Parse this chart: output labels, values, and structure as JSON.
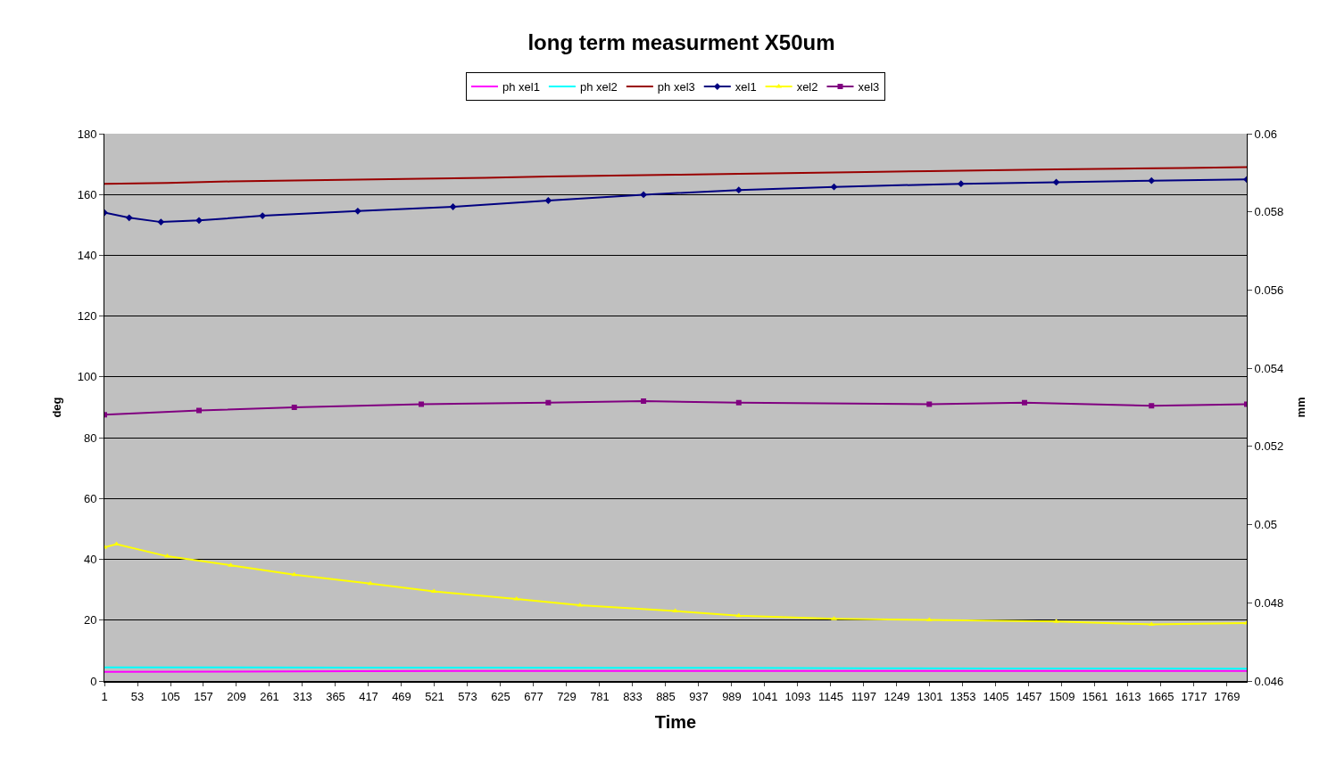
{
  "chart_data": {
    "type": "line",
    "title": "long term measurment X50um",
    "xlabel": "Time",
    "ylabel": "deg",
    "y2label": "mm",
    "xlim": [
      1,
      1800
    ],
    "xticks": [
      1,
      53,
      105,
      157,
      209,
      261,
      313,
      365,
      417,
      469,
      521,
      573,
      625,
      677,
      729,
      781,
      833,
      885,
      937,
      989,
      1041,
      1093,
      1145,
      1197,
      1249,
      1301,
      1353,
      1405,
      1457,
      1509,
      1561,
      1613,
      1665,
      1717,
      1769
    ],
    "ylim": [
      0,
      180
    ],
    "yticks": [
      0,
      20,
      40,
      60,
      80,
      100,
      120,
      140,
      160,
      180
    ],
    "y2lim": [
      0.046,
      0.06
    ],
    "y2ticks": [
      0.046,
      0.048,
      0.05,
      0.052,
      0.054,
      0.056,
      0.058,
      0.06
    ],
    "grid": "y",
    "legend": "top",
    "series": [
      {
        "name": "ph xel1",
        "color": "#ff00ff",
        "marker": "none",
        "x": [
          1,
          200,
          400,
          600,
          800,
          1000,
          1200,
          1400,
          1600,
          1800
        ],
        "values": [
          3,
          3.1,
          3.2,
          3.3,
          3.3,
          3.3,
          3.3,
          3.3,
          3.3,
          3.3
        ]
      },
      {
        "name": "ph xel2",
        "color": "#00ffff",
        "marker": "none",
        "x": [
          1,
          200,
          400,
          600,
          800,
          1000,
          1200,
          1400,
          1600,
          1800
        ],
        "values": [
          4.5,
          4.5,
          4.4,
          4.4,
          4.3,
          4.3,
          4.2,
          4.1,
          4.1,
          4
        ]
      },
      {
        "name": "ph xel3",
        "color": "#990000",
        "marker": "none",
        "x": [
          1,
          100,
          200,
          300,
          400,
          500,
          600,
          700,
          800,
          900,
          1000,
          1100,
          1200,
          1300,
          1400,
          1500,
          1600,
          1700,
          1800
        ],
        "values": [
          163.5,
          163.8,
          164.3,
          164.6,
          164.9,
          165.2,
          165.5,
          165.9,
          166.2,
          166.5,
          166.8,
          167.1,
          167.4,
          167.7,
          168,
          168.3,
          168.5,
          168.7,
          169
        ]
      },
      {
        "name": "xel1",
        "color": "#000080",
        "marker": "diamond",
        "axis": "y2",
        "x": [
          1,
          40,
          90,
          150,
          250,
          400,
          550,
          700,
          850,
          1000,
          1150,
          1350,
          1500,
          1650,
          1800
        ],
        "values": [
          0.05798,
          0.05785,
          0.05774,
          0.05778,
          0.0579,
          0.05802,
          0.05813,
          0.05829,
          0.05844,
          0.05856,
          0.05864,
          0.05872,
          0.05876,
          0.0588,
          0.05883
        ]
      },
      {
        "name": "xel2",
        "color": "#ffff00",
        "marker": "triangle",
        "axis": "y2",
        "x": [
          1,
          20,
          100,
          200,
          300,
          420,
          520,
          650,
          750,
          900,
          1000,
          1150,
          1300,
          1500,
          1650,
          1800
        ],
        "values": [
          0.04942,
          0.0495,
          0.04919,
          0.04896,
          0.04872,
          0.04849,
          0.04829,
          0.0481,
          0.04794,
          0.04779,
          0.04767,
          0.04759,
          0.04756,
          0.04752,
          0.04745,
          0.04748
        ]
      },
      {
        "name": "xel3",
        "color": "#800080",
        "marker": "square",
        "axis": "y2",
        "x": [
          1,
          150,
          300,
          500,
          700,
          850,
          1000,
          1300,
          1450,
          1650,
          1800
        ],
        "values": [
          0.05281,
          0.05292,
          0.053,
          0.05308,
          0.05312,
          0.05316,
          0.05312,
          0.05308,
          0.05312,
          0.05304,
          0.05308
        ]
      }
    ]
  }
}
